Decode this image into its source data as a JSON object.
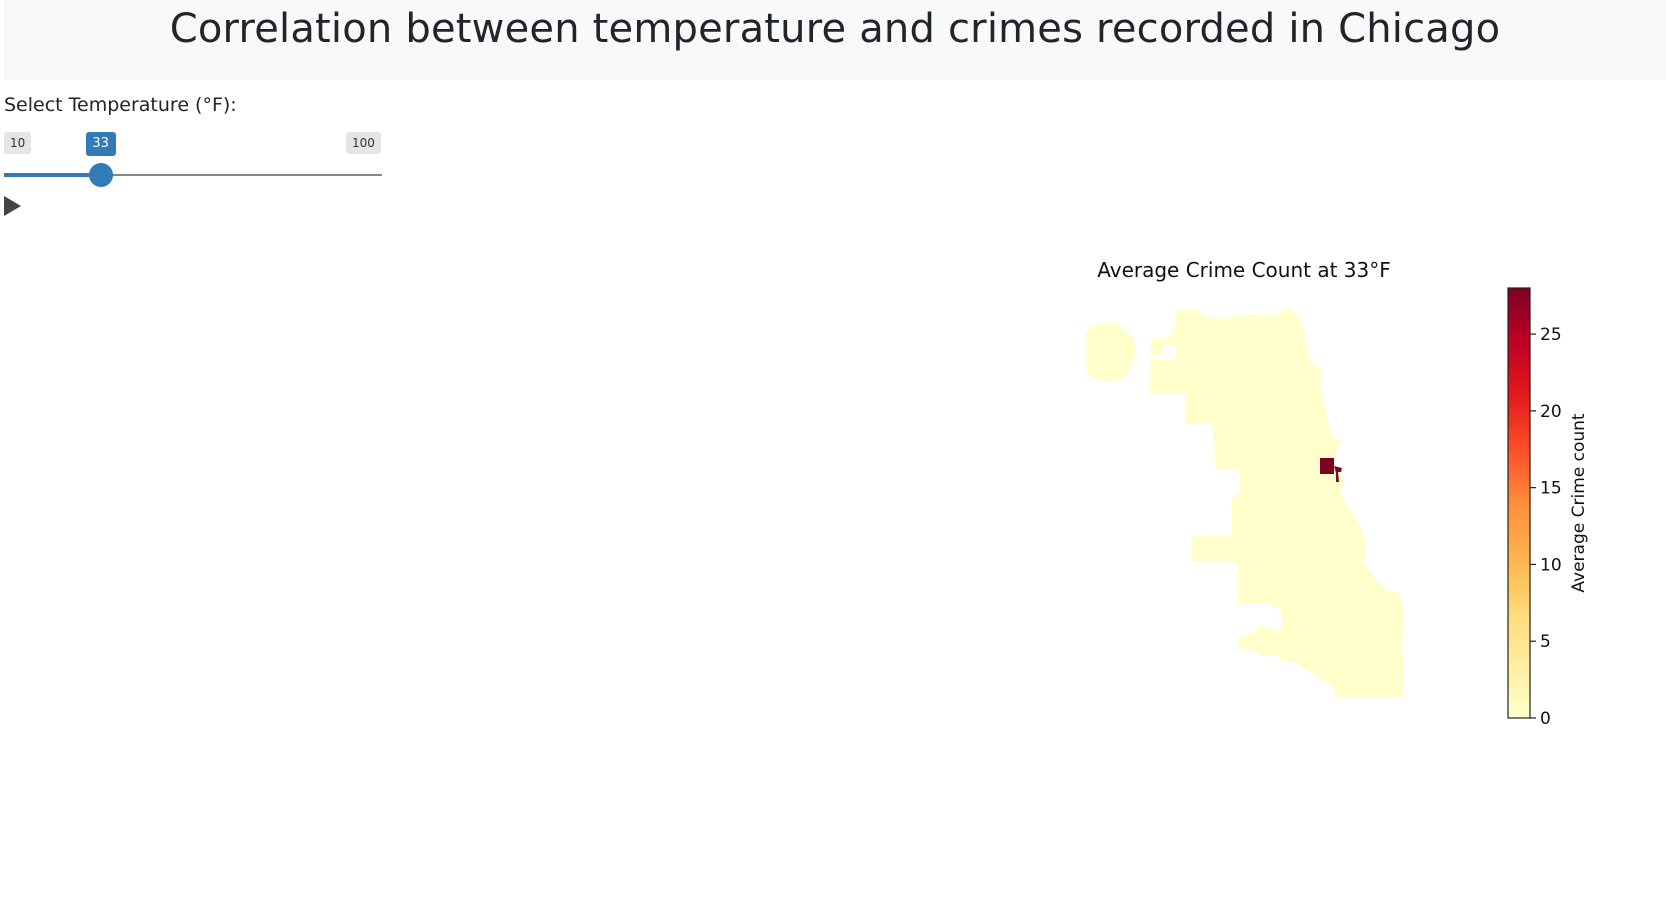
{
  "page": {
    "title": "Correlation between temperature and crimes recorded in Chicago"
  },
  "slider": {
    "label": "Select Temperature (°F):",
    "min_label": "10",
    "max_label": "100",
    "value_label": "33",
    "value_fraction": 0.2556,
    "play_icon": "play-icon"
  },
  "chart": {
    "title": "Average Crime Count at 33°F",
    "colorbar": {
      "label": "Average Crime count",
      "ticks": [
        "0",
        "5",
        "10",
        "15",
        "20",
        "25"
      ],
      "range": [
        0,
        28
      ],
      "colors": [
        "#ffffcc",
        "#ffeda0",
        "#fed976",
        "#feb24c",
        "#fd8d3c",
        "#fc4e2a",
        "#e31a1c",
        "#bd0026",
        "#800026"
      ]
    }
  },
  "chart_data": {
    "type": "heatmap",
    "title": "Average Crime Count at 33°F",
    "colorbar_label": "Average Crime count",
    "colorbar_range": [
      0,
      28
    ],
    "colorbar_ticks": [
      0,
      5,
      10,
      15,
      20,
      25
    ],
    "regions": [
      {
        "name": "",
        "value": 0
      },
      {
        "name": "",
        "value": 28
      },
      {
        "name": "",
        "value": 26
      }
    ]
  }
}
